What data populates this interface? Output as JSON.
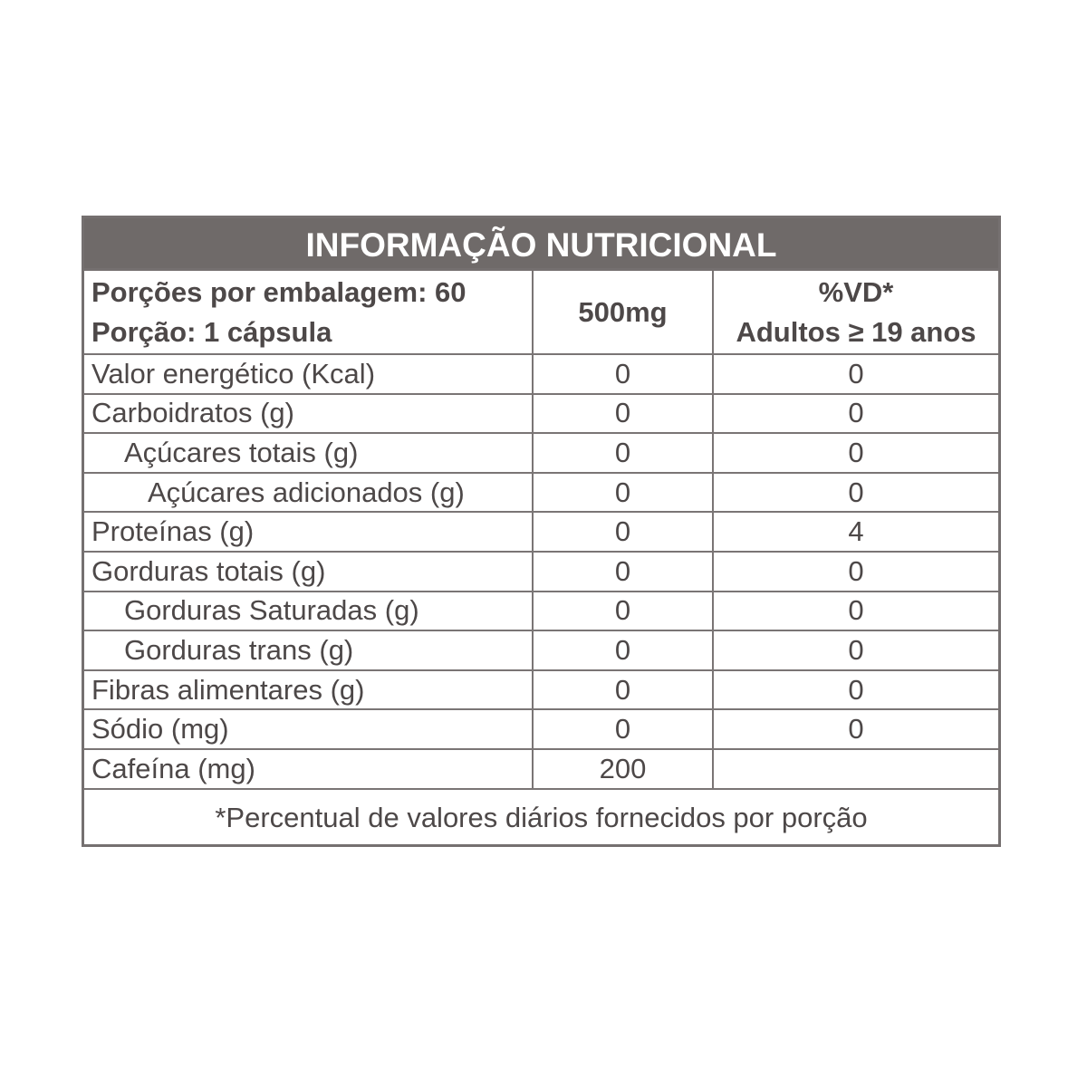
{
  "title": "INFORMAÇÃO NUTRICIONAL",
  "header": {
    "servings_per_package": "Porções por embalagem: 60",
    "serving": "Porção: 1 cápsula",
    "amount_col": "500mg",
    "dv_col_line1": "%VD*",
    "dv_col_line2": "Adultos ≥ 19 anos"
  },
  "rows": [
    {
      "label": "Valor energético (Kcal)",
      "amount": "0",
      "dv": "0",
      "indent": 0
    },
    {
      "label": "Carboidratos (g)",
      "amount": "0",
      "dv": "0",
      "indent": 0
    },
    {
      "label": "Açúcares totais (g)",
      "amount": "0",
      "dv": "0",
      "indent": 1
    },
    {
      "label": "Açúcares adicionados (g)",
      "amount": "0",
      "dv": "0",
      "indent": 2
    },
    {
      "label": "Proteínas (g)",
      "amount": "0",
      "dv": "4",
      "indent": 0
    },
    {
      "label": "Gorduras totais (g)",
      "amount": "0",
      "dv": "0",
      "indent": 0
    },
    {
      "label": "Gorduras Saturadas (g)",
      "amount": "0",
      "dv": "0",
      "indent": 1
    },
    {
      "label": "Gorduras trans (g)",
      "amount": "0",
      "dv": "0",
      "indent": 1
    },
    {
      "label": "Fibras alimentares (g)",
      "amount": "0",
      "dv": "0",
      "indent": 0
    },
    {
      "label": "Sódio (mg)",
      "amount": "0",
      "dv": "0",
      "indent": 0
    },
    {
      "label": "Cafeína (mg)",
      "amount": "200",
      "dv": "",
      "indent": 0
    }
  ],
  "footnote": "*Percentual de valores diários fornecidos por porção",
  "colors": {
    "header_bg": "#6f6a69",
    "text": "#4d4848",
    "border": "#757070"
  }
}
